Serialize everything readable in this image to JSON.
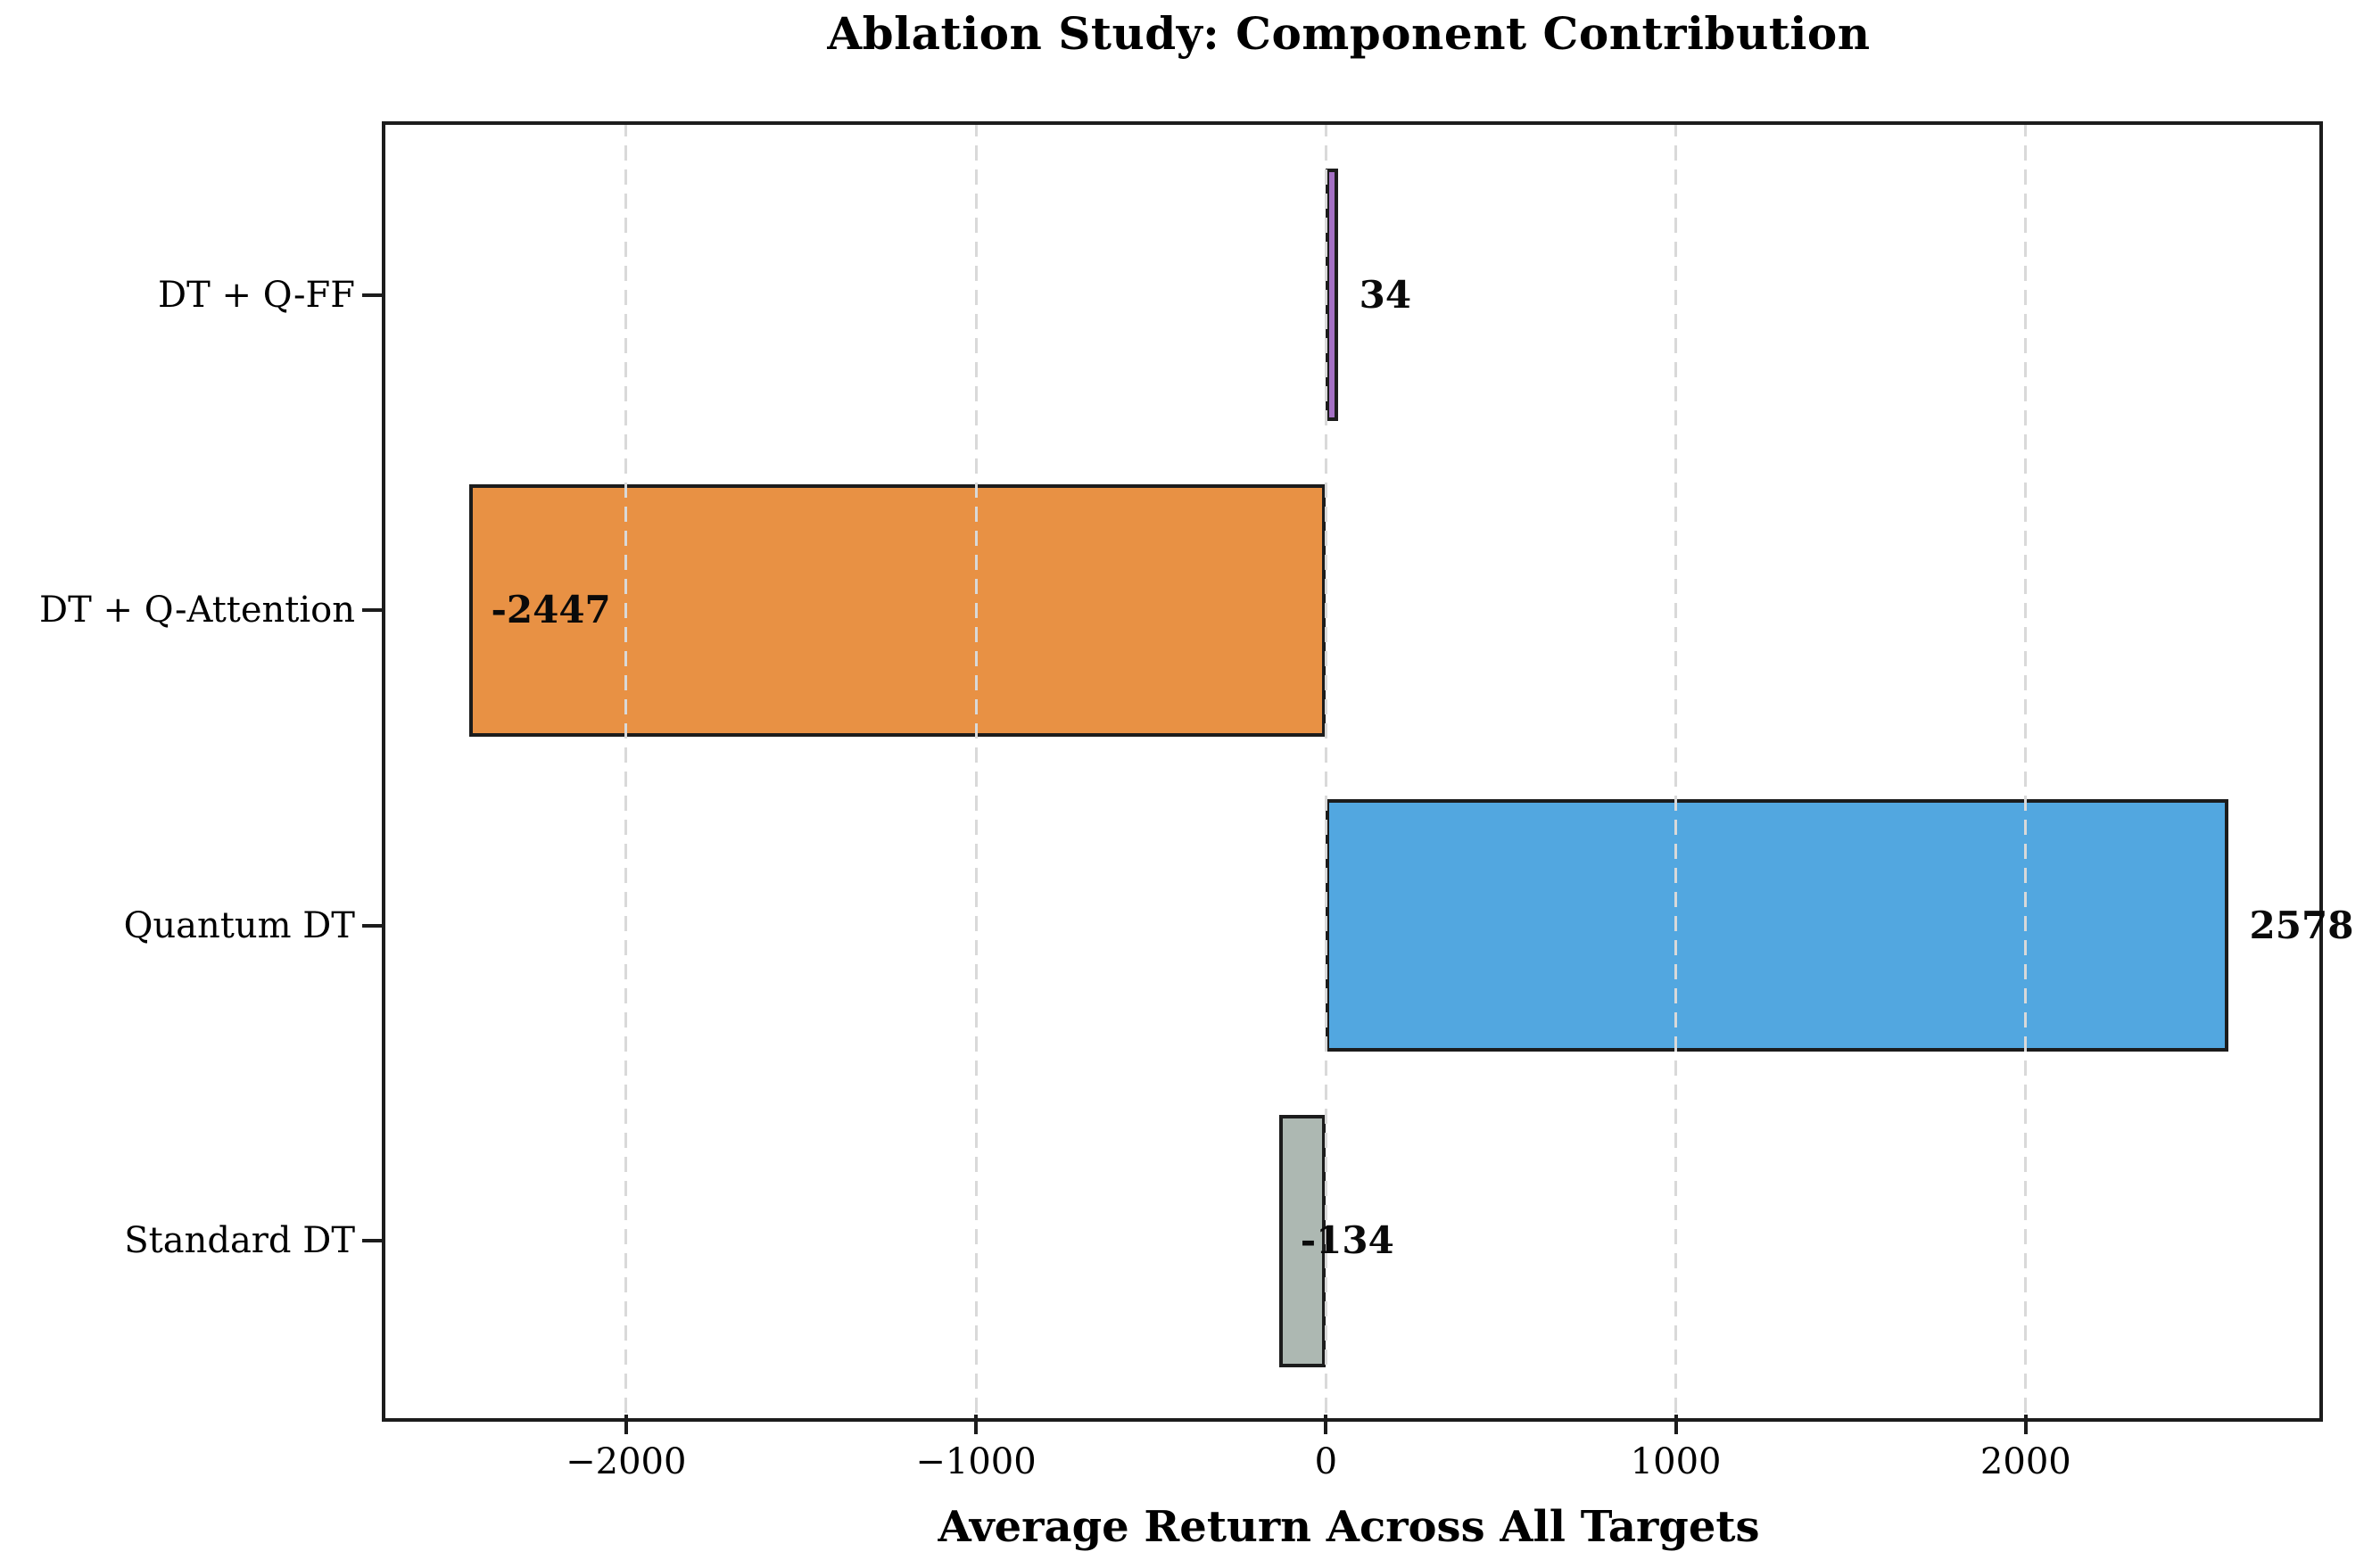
{
  "chart_data": {
    "type": "bar",
    "orientation": "horizontal",
    "title": "Ablation Study: Component Contribution",
    "xlabel": "Average Return Across All Targets",
    "ylabel": "",
    "categories_top_to_bottom": [
      "DT + Q-FF",
      "DT + Q-Attention",
      "Quantum DT",
      "Standard DT"
    ],
    "values": [
      34,
      -2447,
      2578,
      -134
    ],
    "value_labels": [
      "34",
      "-2447",
      "2578",
      "-134"
    ],
    "bar_colors": [
      "#a470c4",
      "#e89144",
      "#52a7e0",
      "#adb8b2"
    ],
    "bar_edge_color": "#1c1c1c",
    "xlim": [
      -2698,
      2829
    ],
    "x_ticks": [
      -2000,
      -1000,
      0,
      1000,
      2000
    ],
    "x_tick_labels": [
      "−2000",
      "−1000",
      "0",
      "1000",
      "2000"
    ],
    "grid": true,
    "grid_color": "#d9d9d9",
    "grid_style": "dashed",
    "grid_above_bars": true,
    "legend": "none",
    "background_color": "#ffffff"
  }
}
